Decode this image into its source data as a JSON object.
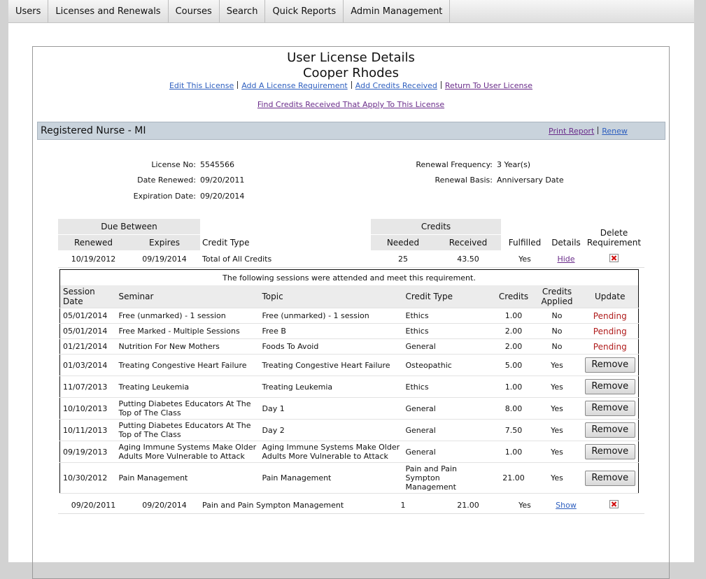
{
  "nav": [
    "Users",
    "Licenses and Renewals",
    "Courses",
    "Search",
    "Quick Reports",
    "Admin Management"
  ],
  "header": {
    "title": "User License Details",
    "name": "Cooper Rhodes",
    "links": [
      "Edit This License",
      "Add A License Requirement",
      "Add Credits Received",
      "Return To User License"
    ],
    "find_link": "Find Credits Received That Apply To This License"
  },
  "license": {
    "title": "Registered Nurse - MI",
    "actions": [
      "Print Report",
      "Renew"
    ],
    "fields_left": [
      {
        "label": "License No:",
        "value": "5545566"
      },
      {
        "label": "Date Renewed:",
        "value": "09/20/2011"
      },
      {
        "label": "Expiration Date:",
        "value": "09/20/2014"
      }
    ],
    "fields_right": [
      {
        "label": "Renewal Frequency:",
        "value": "3 Year(s)"
      },
      {
        "label": "Renewal Basis:",
        "value": "Anniversary Date"
      }
    ]
  },
  "requirements": {
    "columns": {
      "due_between": "Due Between",
      "credits": "Credits",
      "renewed": "Renewed",
      "expires": "Expires",
      "credit_type": "Credit Type",
      "needed": "Needed",
      "received": "Received",
      "fulfilled": "Fulfilled",
      "details": "Details",
      "delete": "Delete Requirement"
    },
    "rows": [
      {
        "renewed": "10/19/2012",
        "expires": "09/19/2014",
        "credit_type": "Total of All Credits",
        "needed": "25",
        "received": "43.50",
        "fulfilled": "Yes",
        "details": "Hide",
        "sessions": {
          "caption": "The following sessions were attended and meet this requirement.",
          "columns": [
            "Session Date",
            "Seminar",
            "Topic",
            "Credit Type",
            "Credits",
            "Credits Applied",
            "Update"
          ],
          "rows": [
            {
              "date": "05/01/2014",
              "seminar": "Free (unmarked) - 1 session",
              "topic": "Free (unmarked) - 1 session",
              "credit_type": "Ethics",
              "credits": "1.00",
              "applied": "No",
              "status": "Pending"
            },
            {
              "date": "05/01/2014",
              "seminar": "Free Marked - Multiple Sessions",
              "topic": "Free B",
              "credit_type": "Ethics",
              "credits": "2.00",
              "applied": "No",
              "status": "Pending"
            },
            {
              "date": "01/21/2014",
              "seminar": "Nutrition For New Mothers",
              "topic": "Foods To Avoid",
              "credit_type": "General",
              "credits": "2.00",
              "applied": "No",
              "status": "Pending"
            },
            {
              "date": "01/03/2014",
              "seminar": "Treating Congestive Heart Failure",
              "topic": "Treating Congestive Heart Failure",
              "credit_type": "Osteopathic",
              "credits": "5.00",
              "applied": "Yes",
              "button": "Remove"
            },
            {
              "date": "11/07/2013",
              "seminar": "Treating Leukemia",
              "topic": "Treating Leukemia",
              "credit_type": "Ethics",
              "credits": "1.00",
              "applied": "Yes",
              "button": "Remove"
            },
            {
              "date": "10/10/2013",
              "seminar": "Putting Diabetes Educators At The Top of The Class",
              "topic": "Day 1",
              "credit_type": "General",
              "credits": "8.00",
              "applied": "Yes",
              "button": "Remove"
            },
            {
              "date": "10/11/2013",
              "seminar": "Putting Diabetes Educators At The Top of The Class",
              "topic": "Day 2",
              "credit_type": "General",
              "credits": "7.50",
              "applied": "Yes",
              "button": "Remove"
            },
            {
              "date": "09/19/2013",
              "seminar": "Aging Immune Systems Make Older Adults More Vulnerable to Attack",
              "topic": "Aging Immune Systems Make Older Adults More Vulnerable to Attack",
              "credit_type": "General",
              "credits": "1.00",
              "applied": "Yes",
              "button": "Remove"
            },
            {
              "date": "10/30/2012",
              "seminar": "Pain Management",
              "topic": "Pain Management",
              "credit_type": "Pain and Pain Sympton Management",
              "credits": "21.00",
              "applied": "Yes",
              "button": "Remove"
            }
          ]
        }
      },
      {
        "renewed": "09/20/2011",
        "expires": "09/20/2014",
        "credit_type": "Pain and Pain Sympton Management",
        "needed": "1",
        "received": "21.00",
        "fulfilled": "Yes",
        "details": "Show"
      }
    ]
  }
}
